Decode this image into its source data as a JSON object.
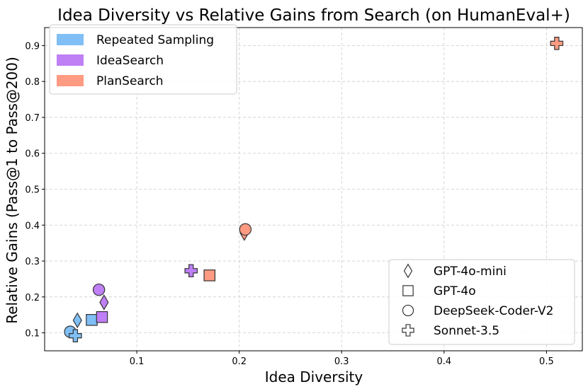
{
  "chart_data": {
    "type": "scatter",
    "title": "Idea Diversity vs Relative Gains from Search (on HumanEval+)",
    "xlabel": "Idea Diversity",
    "ylabel": "Relative Gains (Pass@1 to Pass@200)",
    "xlim": [
      0.01,
      0.535
    ],
    "ylim": [
      0.05,
      0.95
    ],
    "xticks": [
      0.1,
      0.2,
      0.3,
      0.4,
      0.5
    ],
    "xtick_labels": [
      "0.1",
      "0.2",
      "0.3",
      "0.4",
      "0.5"
    ],
    "yticks": [
      0.1,
      0.2,
      0.3,
      0.4,
      0.5,
      0.6,
      0.7,
      0.8,
      0.9
    ],
    "ytick_labels": [
      "0.1",
      "0.2",
      "0.3",
      "0.4",
      "0.5",
      "0.6",
      "0.7",
      "0.8",
      "0.9"
    ],
    "grid": true,
    "method_legend_position": "upper-left",
    "model_legend_position": "lower-right",
    "methods": [
      {
        "name": "Repeated Sampling",
        "color": "#7fbff5"
      },
      {
        "name": "IdeaSearch",
        "color": "#bf7ff5"
      },
      {
        "name": "PlanSearch",
        "color": "#ff9b82"
      }
    ],
    "models": [
      {
        "name": "GPT-4o-mini",
        "marker": "diamond"
      },
      {
        "name": "GPT-4o",
        "marker": "square"
      },
      {
        "name": "DeepSeek-Coder-V2",
        "marker": "circle"
      },
      {
        "name": "Sonnet-3.5",
        "marker": "plus"
      }
    ],
    "series": [
      {
        "method": "Repeated Sampling",
        "points": [
          {
            "model": "GPT-4o-mini",
            "x": 0.042,
            "y": 0.135
          },
          {
            "model": "GPT-4o",
            "x": 0.056,
            "y": 0.136
          },
          {
            "model": "DeepSeek-Coder-V2",
            "x": 0.035,
            "y": 0.103
          },
          {
            "model": "Sonnet-3.5",
            "x": 0.04,
            "y": 0.092
          }
        ]
      },
      {
        "method": "IdeaSearch",
        "points": [
          {
            "model": "GPT-4o-mini",
            "x": 0.068,
            "y": 0.185
          },
          {
            "model": "GPT-4o",
            "x": 0.066,
            "y": 0.144
          },
          {
            "model": "DeepSeek-Coder-V2",
            "x": 0.063,
            "y": 0.22
          },
          {
            "model": "Sonnet-3.5",
            "x": 0.153,
            "y": 0.273
          }
        ]
      },
      {
        "method": "PlanSearch",
        "points": [
          {
            "model": "GPT-4o-mini",
            "x": 0.205,
            "y": 0.378
          },
          {
            "model": "GPT-4o",
            "x": 0.171,
            "y": 0.26
          },
          {
            "model": "DeepSeek-Coder-V2",
            "x": 0.206,
            "y": 0.388
          },
          {
            "model": "Sonnet-3.5",
            "x": 0.51,
            "y": 0.906
          }
        ]
      }
    ]
  }
}
